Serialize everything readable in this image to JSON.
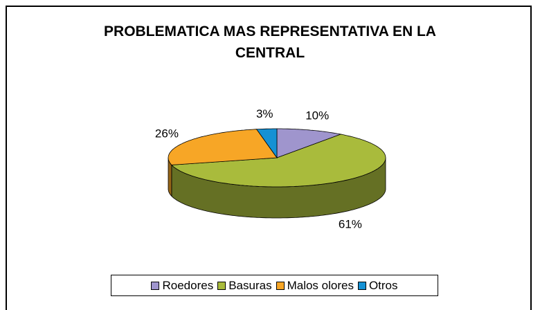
{
  "chart_data": {
    "type": "pie3d",
    "title": "PROBLEMATICA MAS REPRESENTATIVA EN LA CENTRAL",
    "categories": [
      "Roedores",
      "Basuras",
      "Malos olores",
      "Otros"
    ],
    "values": [
      10,
      61,
      26,
      3
    ],
    "value_labels": [
      "10%",
      "61%",
      "26%",
      "3%"
    ],
    "colors": [
      "#9f95cd",
      "#a9bb3c",
      "#f7a626",
      "#1591d4"
    ],
    "legend": "bottom"
  }
}
